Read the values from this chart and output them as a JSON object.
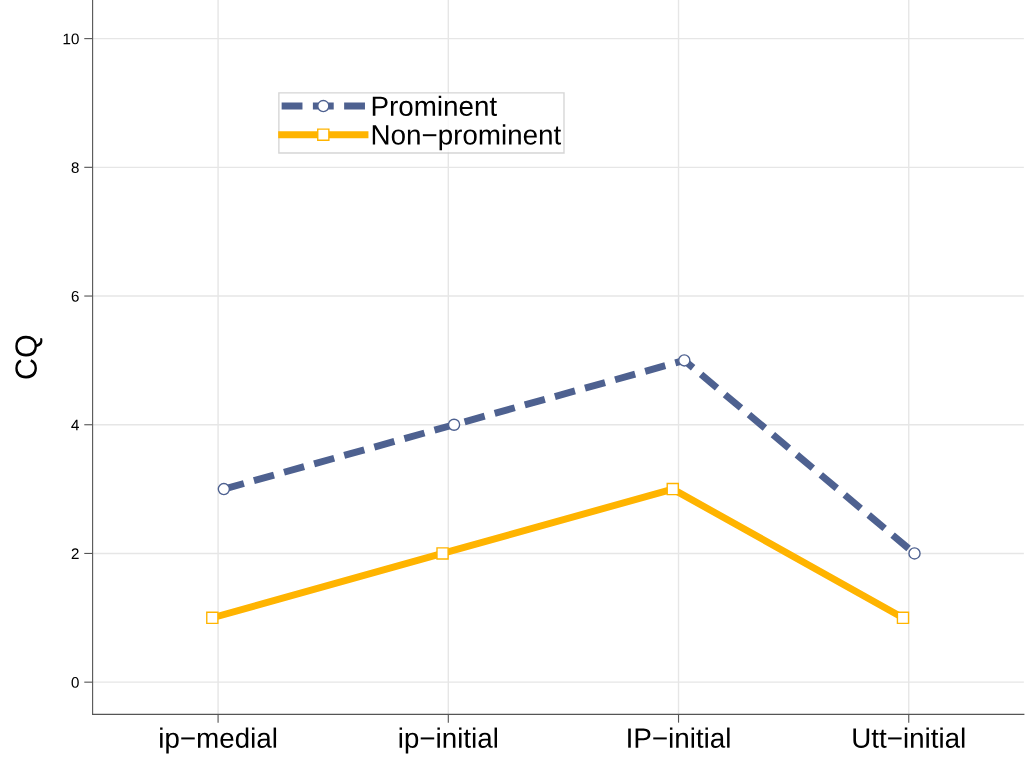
{
  "chart_data": {
    "type": "line",
    "ylabel": "CQ",
    "categories": [
      "ip−medial",
      "ip−initial",
      "IP−initial",
      "Utt−initial"
    ],
    "series": [
      {
        "name": "Prominent",
        "color": "#4e6190",
        "values": [
          3,
          4,
          5,
          2
        ],
        "marker": "circle",
        "line_style": "dashed"
      },
      {
        "name": "Non−prominent",
        "color": "#ffb400",
        "values": [
          1,
          2,
          3,
          1
        ],
        "marker": "square",
        "line_style": "solid"
      }
    ],
    "ylim": [
      -0.5,
      10.6
    ],
    "yticks": [
      0,
      2,
      4,
      6,
      8,
      10
    ],
    "grid": true,
    "legend": "top left"
  }
}
